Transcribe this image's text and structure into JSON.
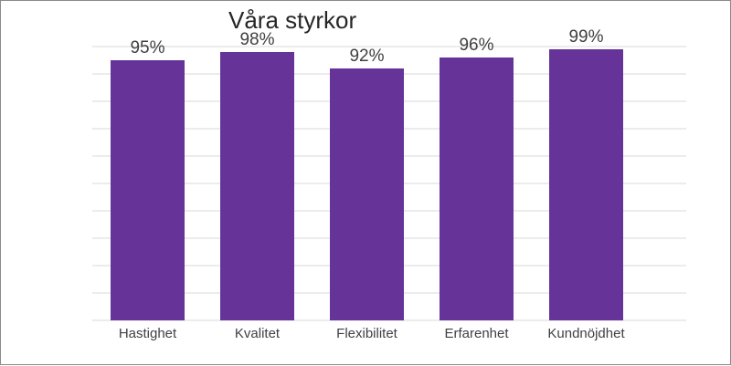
{
  "chart_data": {
    "type": "bar",
    "title": "Våra styrkor",
    "categories": [
      "Hastighet",
      "Kvalitet",
      "Flexibilitet",
      "Erfarenhet",
      "Kundnöjdhet"
    ],
    "values": [
      95,
      98,
      92,
      96,
      99
    ],
    "data_labels": [
      "95%",
      "98%",
      "92%",
      "96%",
      "99%"
    ],
    "xlabel": "",
    "ylabel": "",
    "ylim": [
      0,
      100
    ],
    "grid": true,
    "gridline_count": 10,
    "legend": "none",
    "bar_color": "#663399",
    "grid_color": "#d9d9d9"
  }
}
